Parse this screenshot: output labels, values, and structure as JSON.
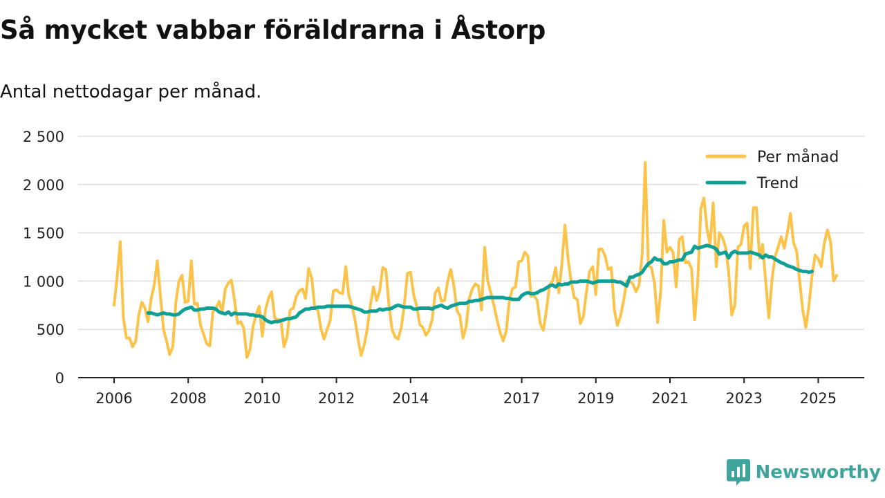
{
  "title": "Så mycket vabbar föräldrarna i Åstorp",
  "subtitle": "Antal nettodagar per månad.",
  "brand": {
    "name": "Newsworthy",
    "icon": "newsworthy-logo-icon"
  },
  "colors": {
    "per_month": "#fbc34a",
    "trend": "#0f9f95",
    "grid": "#dddddd",
    "axis": "#222222",
    "brand": "#3fa59c"
  },
  "chart_data": {
    "type": "line",
    "title": "Så mycket vabbar föräldrarna i Åstorp",
    "subtitle": "Antal nettodagar per månad.",
    "xlabel": "",
    "ylabel": "",
    "x_start": 2006.0,
    "x_step": 0.08333,
    "xlim": [
      2006.0,
      2025.4
    ],
    "ylim": [
      0,
      2500
    ],
    "x_ticks": [
      2006,
      2008,
      2010,
      2012,
      2014,
      2017,
      2019,
      2021,
      2023,
      2025
    ],
    "y_ticks": [
      0,
      500,
      1000,
      1500,
      2000,
      2500
    ],
    "y_tick_labels": [
      "0",
      "500",
      "1 000",
      "1 500",
      "2 000",
      "2 500"
    ],
    "grid": "horizontal",
    "legend_position": "top-right",
    "series": [
      {
        "name": "Per månad",
        "start": 2006.0,
        "values": [
          750,
          1050,
          1410,
          620,
          410,
          410,
          320,
          380,
          650,
          780,
          720,
          580,
          820,
          960,
          1210,
          850,
          500,
          380,
          240,
          320,
          780,
          1000,
          1060,
          780,
          790,
          1210,
          760,
          770,
          540,
          450,
          350,
          330,
          680,
          720,
          790,
          680,
          920,
          980,
          1010,
          800,
          560,
          580,
          510,
          210,
          290,
          530,
          650,
          740,
          430,
          700,
          820,
          890,
          620,
          600,
          600,
          320,
          420,
          700,
          720,
          840,
          900,
          920,
          820,
          1130,
          1030,
          720,
          700,
          500,
          400,
          500,
          600,
          900,
          910,
          880,
          870,
          1150,
          850,
          750,
          600,
          400,
          230,
          340,
          510,
          750,
          940,
          800,
          900,
          1140,
          1120,
          760,
          500,
          420,
          400,
          520,
          760,
          1080,
          1090,
          860,
          740,
          550,
          520,
          440,
          490,
          600,
          880,
          930,
          790,
          800,
          990,
          1120,
          960,
          700,
          640,
          410,
          530,
          820,
          920,
          970,
          950,
          700,
          1350,
          1000,
          880,
          750,
          600,
          470,
          380,
          480,
          800,
          920,
          940,
          1200,
          1210,
          1300,
          1260,
          840,
          850,
          800,
          560,
          490,
          700,
          960,
          1000,
          1140,
          880,
          1170,
          1580,
          1230,
          1000,
          830,
          810,
          560,
          640,
          900,
          1100,
          1150,
          860,
          1330,
          1330,
          1260,
          1120,
          1140,
          700,
          540,
          640,
          800,
          1000,
          1000,
          970,
          890,
          960,
          1280,
          2230,
          1160,
          1140,
          980,
          570,
          900,
          1630,
          1300,
          1350,
          1300,
          940,
          1430,
          1460,
          1190,
          1200,
          1130,
          600,
          1000,
          1750,
          1860,
          1540,
          1380,
          1810,
          1150,
          1500,
          1450,
          1350,
          1100,
          650,
          750,
          1350,
          1380,
          1570,
          1600,
          1130,
          1760,
          1760,
          1240,
          1380,
          1000,
          620,
          1000,
          1250,
          1350,
          1460,
          1340,
          1500,
          1700,
          1400,
          1310,
          1000,
          700,
          520,
          750,
          1050,
          1270,
          1230,
          1150,
          1400,
          1530,
          1410,
          1000,
          1060
        ]
      },
      {
        "name": "Trend",
        "start": 2006.9167,
        "values": [
          670,
          670,
          660,
          650,
          660,
          670,
          660,
          660,
          650,
          650,
          660,
          690,
          710,
          720,
          730,
          700,
          700,
          710,
          710,
          720,
          720,
          720,
          710,
          680,
          670,
          660,
          680,
          650,
          670,
          660,
          660,
          660,
          660,
          650,
          650,
          640,
          640,
          630,
          600,
          580,
          570,
          580,
          580,
          590,
          600,
          610,
          610,
          620,
          630,
          670,
          690,
          710,
          710,
          720,
          720,
          730,
          730,
          730,
          740,
          740,
          740,
          740,
          740,
          740,
          740,
          740,
          730,
          720,
          710,
          700,
          680,
          680,
          690,
          690,
          690,
          710,
          700,
          710,
          710,
          720,
          740,
          750,
          740,
          730,
          730,
          730,
          710,
          710,
          720,
          720,
          720,
          720,
          710,
          730,
          740,
          750,
          730,
          720,
          740,
          750,
          760,
          770,
          770,
          770,
          790,
          790,
          800,
          800,
          810,
          820,
          830,
          830,
          830,
          830,
          830,
          830,
          820,
          820,
          810,
          810,
          810,
          850,
          870,
          880,
          870,
          870,
          880,
          900,
          910,
          930,
          950,
          960,
          940,
          970,
          960,
          970,
          970,
          990,
          990,
          990,
          1000,
          1000,
          1000,
          990,
          980,
          990,
          1000,
          1000,
          1000,
          1000,
          1000,
          1000,
          990,
          990,
          970,
          950,
          1040,
          1040,
          1060,
          1070,
          1090,
          1140,
          1180,
          1200,
          1240,
          1220,
          1220,
          1180,
          1180,
          1200,
          1200,
          1210,
          1220,
          1220,
          1280,
          1290,
          1300,
          1360,
          1340,
          1350,
          1360,
          1370,
          1360,
          1350,
          1330,
          1280,
          1290,
          1300,
          1240,
          1290,
          1310,
          1290,
          1290,
          1290,
          1290,
          1300,
          1290,
          1280,
          1270,
          1240,
          1270,
          1250,
          1250,
          1230,
          1210,
          1190,
          1180,
          1160,
          1150,
          1140,
          1120,
          1110,
          1100,
          1100,
          1090,
          1100
        ]
      }
    ]
  }
}
